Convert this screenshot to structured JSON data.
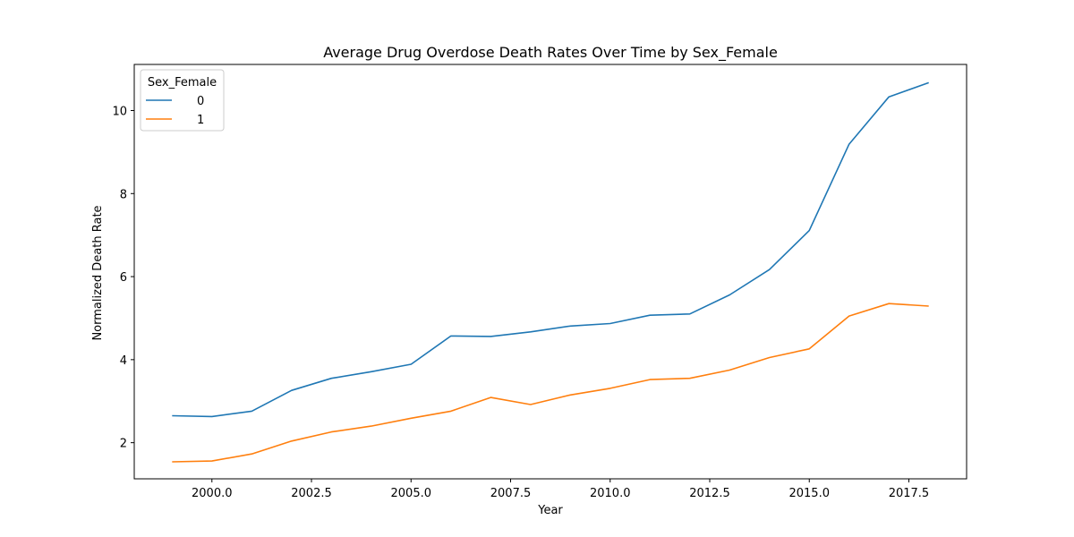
{
  "chart_data": {
    "type": "line",
    "title": "Average Drug Overdose Death Rates Over Time by Sex_Female",
    "xlabel": "Year",
    "ylabel": "Normalized Death Rate",
    "xlim": [
      1998.05,
      2018.95
    ],
    "ylim": [
      1.13,
      11.11
    ],
    "xticks": [
      2000.0,
      2002.5,
      2005.0,
      2007.5,
      2010.0,
      2012.5,
      2015.0,
      2017.5
    ],
    "xtick_labels": [
      "2000.0",
      "2002.5",
      "2005.0",
      "2007.5",
      "2010.0",
      "2012.5",
      "2015.0",
      "2017.5"
    ],
    "yticks": [
      2,
      4,
      6,
      8,
      10
    ],
    "ytick_labels": [
      "2",
      "4",
      "6",
      "8",
      "10"
    ],
    "grid": false,
    "legend": {
      "title": "Sex_Female",
      "placement": "top-left"
    },
    "x": [
      1999,
      2000,
      2001,
      2002,
      2003,
      2004,
      2005,
      2006,
      2007,
      2008,
      2009,
      2010,
      2011,
      2012,
      2013,
      2014,
      2015,
      2016,
      2017,
      2018
    ],
    "series": [
      {
        "name": "0",
        "color": "#1f77b4",
        "values": [
          2.65,
          2.63,
          2.76,
          3.26,
          3.55,
          3.71,
          3.89,
          4.57,
          4.56,
          4.67,
          4.81,
          4.87,
          5.07,
          5.1,
          5.56,
          6.17,
          7.11,
          9.19,
          10.33,
          10.67
        ]
      },
      {
        "name": "1",
        "color": "#ff7f0e",
        "values": [
          1.54,
          1.56,
          1.73,
          2.04,
          2.26,
          2.4,
          2.59,
          2.76,
          3.09,
          2.92,
          3.15,
          3.31,
          3.52,
          3.55,
          3.75,
          4.05,
          4.26,
          5.05,
          5.35,
          5.29
        ]
      }
    ]
  }
}
